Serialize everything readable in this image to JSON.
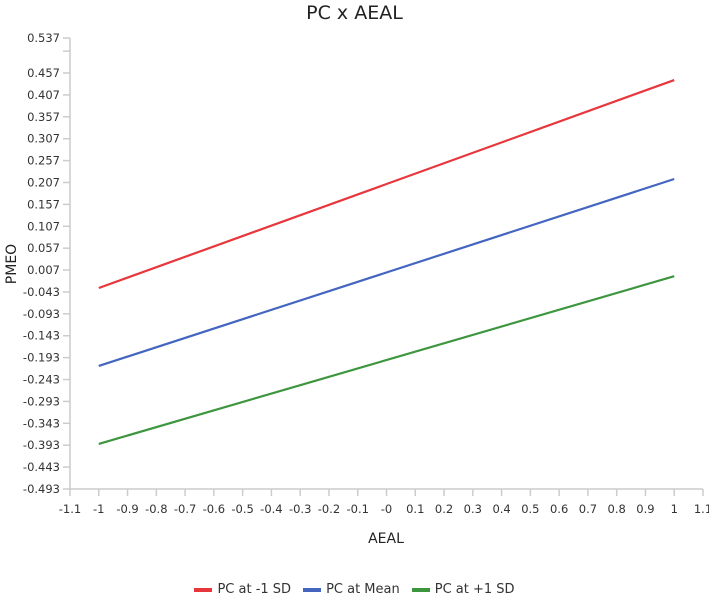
{
  "chart_data": {
    "type": "line",
    "title": "PC x AEAL",
    "xlabel": "AEAL",
    "ylabel": "PMEO",
    "xlim": [
      -1.1,
      1.1
    ],
    "ylim": [
      -0.493,
      0.537
    ],
    "x_ticks": [
      "-1.1",
      "-1",
      "-0.9",
      "-0.8",
      "-0.7",
      "-0.6",
      "-0.5",
      "-0.4",
      "-0.3",
      "-0.2",
      "-0.1",
      "-0",
      "0.1",
      "0.2",
      "0.3",
      "0.4",
      "0.5",
      "0.6",
      "0.7",
      "0.8",
      "0.9",
      "1",
      "1.1"
    ],
    "y_ticks": [
      "0.537",
      "",
      "0.457",
      "0.407",
      "0.357",
      "0.307",
      "0.257",
      "0.207",
      "0.157",
      "0.107",
      "0.057",
      "0.007",
      "-0.043",
      "-0.093",
      "-0.143",
      "-0.193",
      "-0.243",
      "-0.293",
      "-0.343",
      "-0.393",
      "-0.443",
      "-0.493"
    ],
    "y_tick_values": [
      0.537,
      0.507,
      0.457,
      0.407,
      0.357,
      0.307,
      0.257,
      0.207,
      0.157,
      0.107,
      0.057,
      0.007,
      -0.043,
      -0.093,
      -0.143,
      -0.193,
      -0.243,
      -0.293,
      -0.343,
      -0.393,
      -0.443,
      -0.493
    ],
    "grid": false,
    "legend_position": "bottom",
    "x": [
      -1,
      1
    ],
    "series": [
      {
        "name": "PC at -1 SD",
        "color": "#e8373c",
        "values": [
          -0.034,
          0.441
        ]
      },
      {
        "name": "PC at Mean",
        "color": "#4466c0",
        "values": [
          -0.212,
          0.215
        ]
      },
      {
        "name": "PC at +1 SD",
        "color": "#3d963e",
        "values": [
          -0.39,
          -0.007
        ]
      }
    ]
  }
}
